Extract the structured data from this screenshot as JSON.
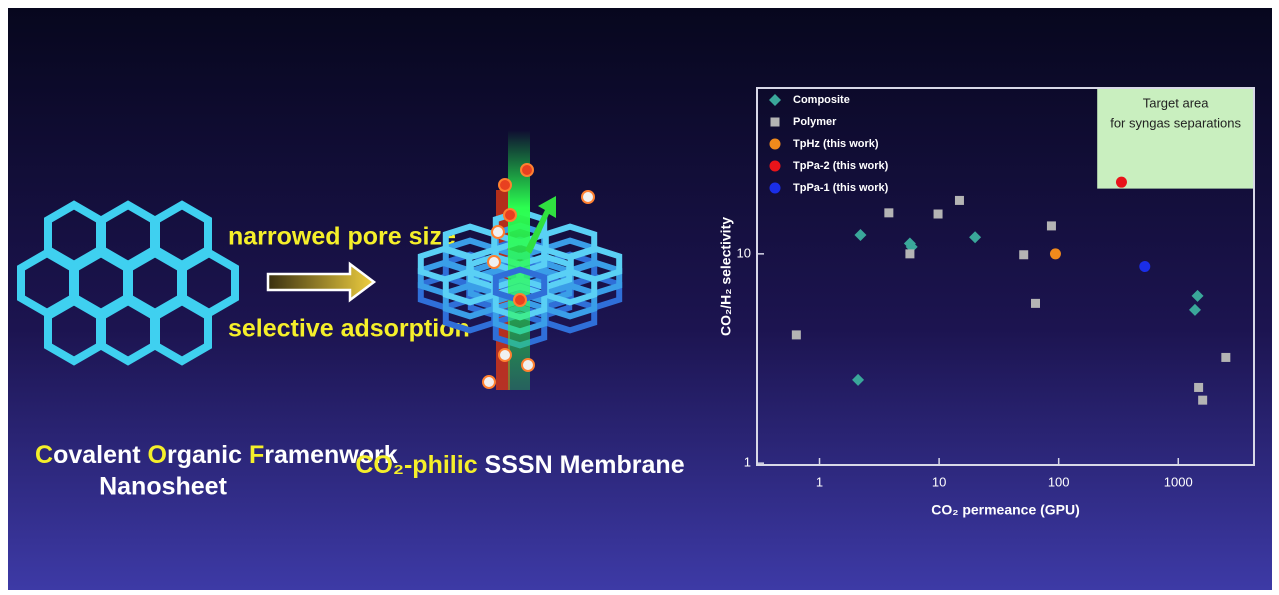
{
  "illustration": {
    "pore_label": "narrowed pore size",
    "adsorption_label": "selective adsorption",
    "left_caption": [
      "C",
      "ovalent ",
      "O",
      "rganic ",
      "F",
      "ramenwork"
    ],
    "left_caption_2": "Nanosheet",
    "right_caption": [
      "CO₂-philic",
      " SSSN Membrane"
    ]
  },
  "chart_data": {
    "type": "scatter",
    "x_label": "CO₂ permeance (GPU)",
    "y_label": "CO₂/H₂ selectivity",
    "xlim": [
      0.3,
      4300
    ],
    "ylim": [
      0.98,
      62
    ],
    "xticks": [
      1,
      10,
      100,
      1000
    ],
    "yticks": [
      1,
      10
    ],
    "x_log": true,
    "y_log": true,
    "legend": "upper left",
    "target_area": {
      "x": 210,
      "y": 20.5,
      "lines": [
        "Target area",
        "for syngas separations"
      ]
    },
    "series": [
      {
        "name": "Composite",
        "color": "#3aa79a",
        "marker": "diamond",
        "x": [
          2.2,
          5.7,
          5.9,
          20,
          2.1,
          1450,
          1380
        ],
        "values": [
          12.3,
          11.2,
          10.8,
          12,
          2.5,
          6.3,
          5.4
        ]
      },
      {
        "name": "Polymer",
        "color": "#b4b4b4",
        "marker": "square",
        "x": [
          0.64,
          3.8,
          9.8,
          14.8,
          5.7,
          51,
          87,
          64,
          2500,
          1480,
          1600
        ],
        "values": [
          4.1,
          15.7,
          15.5,
          18,
          10,
          9.9,
          13.6,
          5.8,
          3.2,
          2.3,
          2.0
        ]
      },
      {
        "name": "TpHz (this work)",
        "color": "#f08a1c",
        "marker": "circle",
        "x": [
          94
        ],
        "values": [
          10
        ]
      },
      {
        "name": "TpPa-2 (this work)",
        "color": "#e8141a",
        "marker": "circle",
        "x": [
          335
        ],
        "values": [
          22
        ]
      },
      {
        "name": "TpPa-1 (this work)",
        "color": "#1a2ee8",
        "marker": "circle",
        "x": [
          525
        ],
        "values": [
          8.7
        ]
      }
    ]
  }
}
